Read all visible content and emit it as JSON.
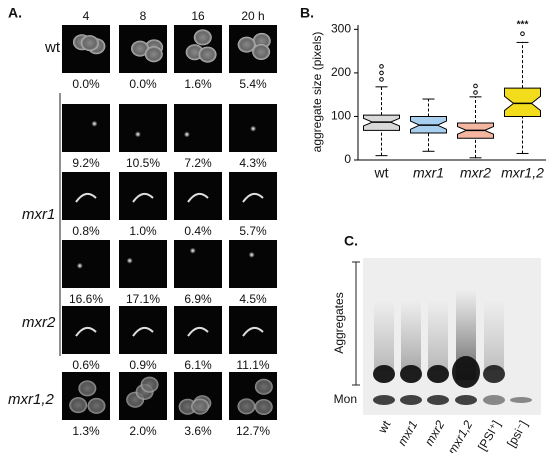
{
  "panel_a": {
    "label": "A.",
    "time_points": [
      "4",
      "8",
      "16",
      "20 h"
    ],
    "strains": [
      {
        "name": "wt",
        "rows": [
          [
            "0.0%",
            "0.0%",
            "1.6%",
            "5.4%"
          ]
        ]
      },
      {
        "name": "mxr1",
        "rows": [
          [
            "9.2%",
            "10.5%",
            "7.2%",
            "4.3%"
          ],
          [
            "0.8%",
            "1.0%",
            "0.4%",
            "5.7%"
          ]
        ]
      },
      {
        "name": "mxr2",
        "rows": [
          [
            "16.6%",
            "17.1%",
            "6.9%",
            "4.5%"
          ],
          [
            "0.6%",
            "0.9%",
            "6.1%",
            "11.1%"
          ]
        ]
      },
      {
        "name": "mxr1,2",
        "rows": [
          [
            "1.3%",
            "2.0%",
            "3.6%",
            "12.7%"
          ]
        ]
      }
    ]
  },
  "chart_data": {
    "type": "box",
    "label": "B.",
    "y_label": "aggregate size (pixels)",
    "categories": [
      "wt",
      "mxr1",
      "mxr2",
      "mxr1,2"
    ],
    "colors": [
      "#d9d9d9",
      "#a9cfee",
      "#f4b6a0",
      "#f2dc1c"
    ],
    "boxes": [
      {
        "whisker_low": 10,
        "q1": 68,
        "median": 87,
        "q3": 103,
        "whisker_high": 168,
        "outliers": [
          185,
          200,
          215
        ]
      },
      {
        "whisker_low": 20,
        "q1": 62,
        "median": 80,
        "q3": 100,
        "whisker_high": 140,
        "outliers": []
      },
      {
        "whisker_low": 5,
        "q1": 50,
        "median": 68,
        "q3": 85,
        "whisker_high": 145,
        "outliers": [
          155,
          170
        ]
      },
      {
        "whisker_low": 15,
        "q1": 100,
        "median": 130,
        "q3": 165,
        "whisker_high": 270,
        "outliers": [
          290
        ]
      }
    ],
    "annotation": "***",
    "ylim": [
      0,
      310
    ],
    "yticks": [
      0,
      100,
      200,
      300
    ]
  },
  "panel_c": {
    "label": "C.",
    "aggregates_label": "Aggregates",
    "monomer_label": "Mon",
    "lanes": [
      "wt",
      "mxr1",
      "mxr2",
      "mxr1,2",
      "[PSI⁺]",
      "[psi⁻]"
    ]
  }
}
